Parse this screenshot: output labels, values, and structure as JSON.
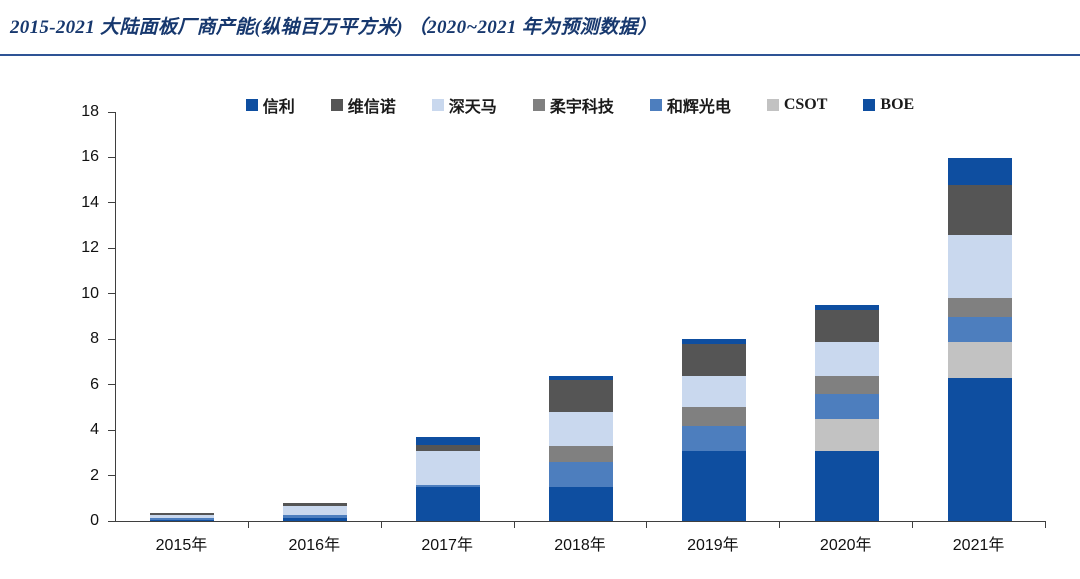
{
  "page": {
    "title": "2015-2021 大陆面板厂商产能(纵轴百万平方米) （2020~2021 年为预测数据）"
  },
  "colors": {
    "title_text": "#17386e",
    "title_rule": "#2e5395",
    "axis": "#3f3f3f"
  },
  "chart_data": {
    "type": "bar",
    "stacked": true,
    "title": "2015-2021 大陆面板厂商产能(纵轴百万平方米) （2020~2021 年为预测数据）",
    "xlabel": "",
    "ylabel": "",
    "ylim": [
      0,
      18
    ],
    "yticks": [
      0,
      2,
      4,
      6,
      8,
      10,
      12,
      14,
      16,
      18
    ],
    "grid": false,
    "legend_position": "top",
    "legend_order": [
      "信利",
      "维信诺",
      "深天马",
      "柔宇科技",
      "和辉光电",
      "CSOT",
      "BOE"
    ],
    "categories": [
      "2015年",
      "2016年",
      "2017年",
      "2018年",
      "2019年",
      "2020年",
      "2021年"
    ],
    "series": [
      {
        "name": "BOE",
        "color": "#0e4ea0",
        "values": [
          0.05,
          0.15,
          1.5,
          1.5,
          3.1,
          3.1,
          6.3
        ]
      },
      {
        "name": "CSOT",
        "color": "#c2c2c2",
        "values": [
          0,
          0,
          0,
          0,
          0,
          1.4,
          1.6
        ]
      },
      {
        "name": "和辉光电",
        "color": "#4d7ebe",
        "values": [
          0.1,
          0.1,
          0.1,
          1.1,
          1.1,
          1.1,
          1.1
        ]
      },
      {
        "name": "柔宇科技",
        "color": "#808080",
        "values": [
          0,
          0,
          0,
          0.7,
          0.8,
          0.8,
          0.8
        ]
      },
      {
        "name": "深天马",
        "color": "#c9d8ee",
        "values": [
          0.1,
          0.4,
          1.5,
          1.5,
          1.4,
          1.5,
          2.8
        ]
      },
      {
        "name": "维信诺",
        "color": "#555555",
        "values": [
          0.1,
          0.15,
          0.25,
          1.4,
          1.4,
          1.4,
          2.2
        ]
      },
      {
        "name": "信利",
        "color": "#0e4ea0",
        "values": [
          0,
          0,
          0.35,
          0.2,
          0.2,
          0.2,
          1.2
        ]
      }
    ],
    "totals": [
      0.35,
      0.8,
      3.7,
      6.4,
      8.0,
      9.5,
      16.0
    ]
  }
}
